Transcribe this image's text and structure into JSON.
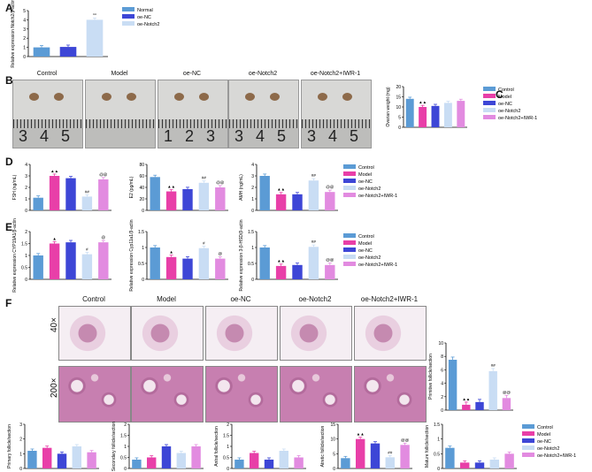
{
  "panels": {
    "a": "A",
    "b": "B",
    "c": "C",
    "d": "D",
    "e": "E",
    "f": "F"
  },
  "colors": {
    "Normal": "#5b9bd5",
    "Control": "#5b9bd5",
    "Model": "#e83fa8",
    "oe-NC": "#3d46d6",
    "oe-Notch2": "#c9ddf4",
    "oe-Notch2+IWR-1": "#e28be0"
  },
  "groups": [
    "Control",
    "Model",
    "oe-NC",
    "oe-Notch2",
    "oe-Notch2+IWR-1"
  ],
  "ruler_numbers": [
    [
      "3",
      "4",
      "5"
    ],
    [
      "",
      "",
      ""
    ],
    [
      "1",
      "2",
      "3"
    ],
    [
      "3",
      "4",
      "5"
    ],
    [
      "3",
      "4",
      "5"
    ]
  ],
  "magnifications": {
    "low": "40×",
    "high": "200×"
  },
  "chart_data": [
    {
      "id": "A",
      "type": "bar",
      "categories": [
        "Normal",
        "oe-NC",
        "oe-Notch2"
      ],
      "values": [
        1.0,
        1.05,
        4.0
      ],
      "ylabel": "Relative expression Notch2/β-actin",
      "ylim": [
        0,
        5
      ],
      "yticks": [
        0,
        1,
        2,
        3,
        4,
        5
      ],
      "sig": [
        "",
        "",
        "^^"
      ],
      "legend": [
        "Normal",
        "oe-NC",
        "oe-Notch2"
      ]
    },
    {
      "id": "C",
      "type": "bar",
      "categories": [
        "Control",
        "Model",
        "oe-NC",
        "oe-Notch2",
        "oe-Notch2+IWR-1"
      ],
      "values": [
        14,
        10,
        10.5,
        12,
        13
      ],
      "ylabel": "Ovarian weight (mg)",
      "ylim": [
        0,
        20
      ],
      "yticks": [
        0,
        5,
        10,
        15,
        20
      ],
      "sig": [
        "",
        "▲▲",
        "",
        "",
        ""
      ],
      "legend": [
        "Control",
        "Model",
        "oe-NC",
        "oe-Notch2",
        "oe-Notch2+IWR-1"
      ]
    },
    {
      "id": "D1",
      "type": "bar",
      "categories": [
        "Control",
        "Model",
        "oe-NC",
        "oe-Notch2",
        "oe-Notch2+IWR-1"
      ],
      "values": [
        1.1,
        3.0,
        2.8,
        1.2,
        2.7
      ],
      "ylabel": "FSH (ng/mL)",
      "ylim": [
        0,
        4
      ],
      "yticks": [
        0,
        1,
        2,
        3,
        4
      ],
      "sig": [
        "",
        "▲▲",
        "",
        "##",
        "@@"
      ]
    },
    {
      "id": "D2",
      "type": "bar",
      "categories": [
        "Control",
        "Model",
        "oe-NC",
        "oe-Notch2",
        "oe-Notch2+IWR-1"
      ],
      "values": [
        58,
        33,
        37,
        48,
        40
      ],
      "ylabel": "E2 (pg/mL)",
      "ylim": [
        0,
        80
      ],
      "yticks": [
        0,
        20,
        40,
        60,
        80
      ],
      "sig": [
        "",
        "▲▲",
        "",
        "##",
        "@@"
      ]
    },
    {
      "id": "D3",
      "type": "bar",
      "categories": [
        "Control",
        "Model",
        "oe-NC",
        "oe-Notch2",
        "oe-Notch2+IWR-1"
      ],
      "values": [
        3.0,
        1.4,
        1.4,
        2.6,
        1.6
      ],
      "ylabel": "AMH (ng/mL)",
      "ylim": [
        0,
        4
      ],
      "yticks": [
        0,
        1,
        2,
        3,
        4
      ],
      "sig": [
        "",
        "▲▲",
        "",
        "##",
        "@@"
      ],
      "legend": [
        "Control",
        "Model",
        "oe-NC",
        "oe-Notch2",
        "oe-Notch2+IWR-1"
      ]
    },
    {
      "id": "E1",
      "type": "bar",
      "categories": [
        "Control",
        "Model",
        "oe-NC",
        "oe-Notch2",
        "oe-Notch2+IWR-1"
      ],
      "values": [
        1.0,
        1.5,
        1.55,
        1.05,
        1.55
      ],
      "ylabel": "Relative expression CYP19A1/β-actin",
      "ylim": [
        0,
        2
      ],
      "yticks": [
        0.0,
        0.5,
        1.0,
        1.5,
        2.0
      ],
      "sig": [
        "",
        "▲",
        "",
        "#",
        "@"
      ]
    },
    {
      "id": "E2",
      "type": "bar",
      "categories": [
        "Control",
        "Model",
        "oe-NC",
        "oe-Notch2",
        "oe-Notch2+IWR-1"
      ],
      "values": [
        1.0,
        0.7,
        0.65,
        0.98,
        0.65
      ],
      "ylabel": "Relative expression Cyp11a1/β-actin",
      "ylim": [
        0,
        1.5
      ],
      "yticks": [
        0.0,
        0.5,
        1.0,
        1.5
      ],
      "sig": [
        "",
        "▲",
        "",
        "#",
        "@"
      ]
    },
    {
      "id": "E3",
      "type": "bar",
      "categories": [
        "Control",
        "Model",
        "oe-NC",
        "oe-Notch2",
        "oe-Notch2+IWR-1"
      ],
      "values": [
        1.0,
        0.42,
        0.45,
        1.02,
        0.45
      ],
      "ylabel": "Relative expression 3-β-HSD/β-actin",
      "ylim": [
        0,
        1.5
      ],
      "yticks": [
        0.0,
        0.5,
        1.0,
        1.5
      ],
      "sig": [
        "",
        "▲▲",
        "",
        "##",
        "@@"
      ],
      "legend": [
        "Control",
        "Model",
        "oe-NC",
        "oe-Notch2",
        "oe-Notch2+IWR-1"
      ]
    },
    {
      "id": "F0",
      "type": "bar",
      "categories": [
        "Control",
        "Model",
        "oe-NC",
        "oe-Notch2",
        "oe-Notch2+IWR-1"
      ],
      "values": [
        7.5,
        0.8,
        1.2,
        5.8,
        1.8
      ],
      "ylabel": "Primitive follicle/section",
      "ylim": [
        0,
        10
      ],
      "yticks": [
        0,
        2,
        4,
        6,
        8,
        10
      ],
      "sig": [
        "",
        "▲▲",
        "",
        "##",
        "@@"
      ]
    },
    {
      "id": "F1",
      "type": "bar",
      "categories": [
        "Control",
        "Model",
        "oe-NC",
        "oe-Notch2",
        "oe-Notch2+IWR-1"
      ],
      "values": [
        1.2,
        1.4,
        1.0,
        1.5,
        1.1
      ],
      "ylabel": "Primary follicle/section",
      "ylim": [
        0,
        3
      ],
      "yticks": [
        0,
        1,
        2,
        3
      ],
      "sig": [
        "",
        "",
        "",
        "",
        ""
      ]
    },
    {
      "id": "F2",
      "type": "bar",
      "categories": [
        "Control",
        "Model",
        "oe-NC",
        "oe-Notch2",
        "oe-Notch2+IWR-1"
      ],
      "values": [
        0.4,
        0.5,
        1.0,
        0.7,
        1.0
      ],
      "ylabel": "Secondary follicle/section",
      "ylim": [
        0,
        2
      ],
      "yticks": [
        0.0,
        0.5,
        1.0,
        1.5,
        2.0
      ],
      "sig": [
        "",
        "",
        "",
        "",
        ""
      ]
    },
    {
      "id": "F3",
      "type": "bar",
      "categories": [
        "Control",
        "Model",
        "oe-NC",
        "oe-Notch2",
        "oe-Notch2+IWR-1"
      ],
      "values": [
        0.4,
        0.7,
        0.4,
        0.8,
        0.5
      ],
      "ylabel": "Antral follicle/section",
      "ylim": [
        0,
        2
      ],
      "yticks": [
        0.0,
        0.5,
        1.0,
        1.5,
        2.0
      ],
      "sig": [
        "",
        "",
        "",
        "",
        ""
      ]
    },
    {
      "id": "F4",
      "type": "bar",
      "categories": [
        "Control",
        "Model",
        "oe-NC",
        "oe-Notch2",
        "oe-Notch2+IWR-1"
      ],
      "values": [
        3.5,
        10,
        8.5,
        3.8,
        8
      ],
      "ylabel": "Atretic follicle/section",
      "ylim": [
        0,
        15
      ],
      "yticks": [
        0,
        5,
        10,
        15
      ],
      "sig": [
        "",
        "▲▲",
        "",
        "##",
        "@@"
      ]
    },
    {
      "id": "F5",
      "type": "bar",
      "categories": [
        "Control",
        "Model",
        "oe-NC",
        "oe-Notch2",
        "oe-Notch2+IWR-1"
      ],
      "values": [
        0.7,
        0.2,
        0.2,
        0.3,
        0.5
      ],
      "ylabel": "Mature follicle/section",
      "ylim": [
        0,
        1.5
      ],
      "yticks": [
        0.0,
        0.5,
        1.0,
        1.5
      ],
      "sig": [
        "",
        "",
        "",
        "",
        ""
      ],
      "legend": [
        "Control",
        "Model",
        "oe-NC",
        "oe-Notch2",
        "oe-Notch2+IWR-1"
      ]
    }
  ]
}
